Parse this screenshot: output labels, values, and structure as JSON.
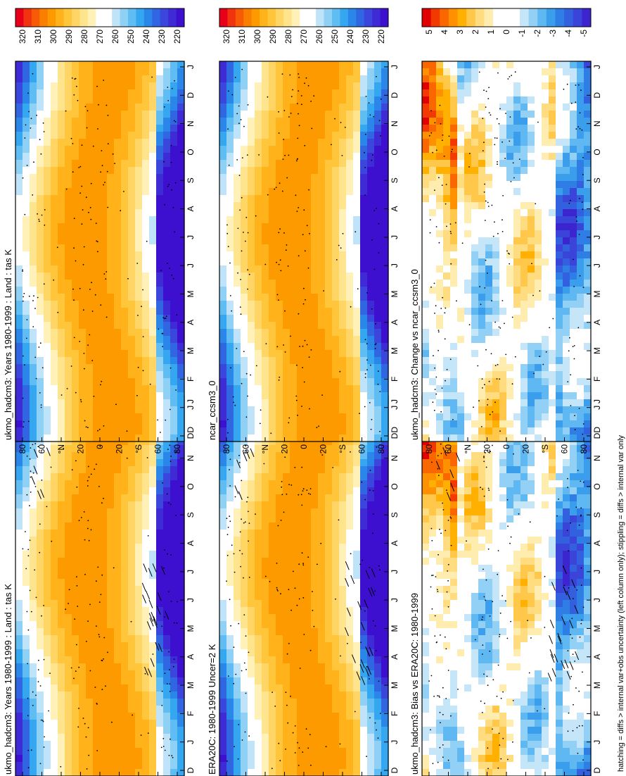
{
  "figure": {
    "footnote": "hatching = diffs > internal var+obs uncertainty (left column only); stippling = diffs > internal var only"
  },
  "chart_data": [
    {
      "id": "p1",
      "type": "heatmap",
      "field": "abs",
      "title": "ukmo_hadcm3: Years 1980-1999 : Land : tas K",
      "x_ticks": [
        "D",
        "J",
        "F",
        "M",
        "A",
        "M",
        "J",
        "J",
        "A",
        "S",
        "O",
        "N",
        "D",
        "J"
      ],
      "y_ticks": [
        "80",
        "60",
        "°N",
        "20",
        "0",
        "20",
        "°S",
        "60",
        "80"
      ],
      "colorbar": {
        "labels": [
          "320",
          "310",
          "300",
          "290",
          "280",
          "270",
          "260",
          "250",
          "240",
          "230",
          "220"
        ]
      },
      "overlay": "stipple+hatch",
      "seed": 3
    },
    {
      "id": "p2",
      "type": "heatmap",
      "field": "abs",
      "title": "ukmo_hadcm3: Years 1980-1999 : Land : tas K",
      "x_ticks": [
        "D",
        "J",
        "F",
        "M",
        "A",
        "M",
        "J",
        "J",
        "A",
        "S",
        "O",
        "N",
        "D",
        "J"
      ],
      "y_ticks": [
        "80",
        "60",
        "°N",
        "20",
        "0",
        "20",
        "°S",
        "60",
        "80"
      ],
      "colorbar": {
        "labels": [
          "320",
          "310",
          "300",
          "290",
          "280",
          "270",
          "260",
          "250",
          "240",
          "230",
          "220"
        ]
      },
      "overlay": "stipple",
      "seed": 5
    },
    {
      "id": "p3",
      "type": "heatmap",
      "field": "abs",
      "title": "ERA20C: 1980-1999 Uncer=2 K",
      "x_ticks": [
        "D",
        "J",
        "F",
        "M",
        "A",
        "M",
        "J",
        "J",
        "A",
        "S",
        "O",
        "N",
        "D",
        "J"
      ],
      "y_ticks": [
        "80",
        "60",
        "°N",
        "20",
        "0",
        "20",
        "°S",
        "60",
        "80"
      ],
      "colorbar": {
        "labels": [
          "320",
          "310",
          "300",
          "290",
          "280",
          "270",
          "260",
          "250",
          "240",
          "230",
          "220"
        ]
      },
      "overlay": "stipple+hatch",
      "seed": 7
    },
    {
      "id": "p4",
      "type": "heatmap",
      "field": "abs",
      "title": "ncar_ccsm3_0",
      "x_ticks": [
        "D",
        "J",
        "F",
        "M",
        "A",
        "M",
        "J",
        "J",
        "A",
        "S",
        "O",
        "N",
        "D",
        "J"
      ],
      "y_ticks": [
        "80",
        "60",
        "°N",
        "20",
        "0",
        "20",
        "°S",
        "60",
        "80"
      ],
      "colorbar": {
        "labels": [
          "320",
          "310",
          "300",
          "290",
          "280",
          "270",
          "260",
          "250",
          "240",
          "230",
          "220"
        ]
      },
      "overlay": "stipple",
      "seed": 9
    },
    {
      "id": "p5",
      "type": "heatmap",
      "field": "diff",
      "title": "ukmo_hadcm3: Bias vs ERA20C: 1980-1999",
      "x_ticks": [
        "D",
        "J",
        "F",
        "M",
        "A",
        "M",
        "J",
        "J",
        "A",
        "S",
        "O",
        "N",
        "D",
        "J"
      ],
      "y_ticks": [
        "80",
        "60",
        "°N",
        "20",
        "0",
        "20",
        "°S",
        "60",
        "80"
      ],
      "colorbar": {
        "labels": [
          "5",
          "4",
          "3",
          "2",
          "1",
          "0",
          "-1",
          "-2",
          "-3",
          "-4",
          "-5"
        ]
      },
      "overlay": "stipple+hatch",
      "seed": 11
    },
    {
      "id": "p6",
      "type": "heatmap",
      "field": "diff",
      "title": "ukmo_hadcm3: Change vs ncar_ccsm3_0",
      "x_ticks": [
        "D",
        "J",
        "F",
        "M",
        "A",
        "M",
        "J",
        "J",
        "A",
        "S",
        "O",
        "N",
        "D",
        "J"
      ],
      "y_ticks": [
        "80",
        "60",
        "°N",
        "20",
        "0",
        "20",
        "°S",
        "60",
        "80"
      ],
      "colorbar": {
        "labels": [
          "5",
          "4",
          "3",
          "2",
          "1",
          "0",
          "-1",
          "-2",
          "-3",
          "-4",
          "-5"
        ]
      },
      "overlay": "stipple",
      "seed": 13
    }
  ],
  "colors": {
    "abs": [
      "#e8001a",
      "#f2330f",
      "#f75b05",
      "#fa7f00",
      "#fd9a00",
      "#ffb21a",
      "#ffc63c",
      "#ffd666",
      "#ffe48e",
      "#fff1b8",
      "#ffffff",
      "#ffffff",
      "#bfe3f8",
      "#8fd0f5",
      "#5fbdf3",
      "#35a6f0",
      "#2b86e9",
      "#3066e2",
      "#3a46dc",
      "#3f2bd6",
      "#3d10cf"
    ],
    "diff": [
      "#e00000",
      "#f23a00",
      "#fa6600",
      "#ff9000",
      "#ffb000",
      "#ffc84a",
      "#ffdc80",
      "#ffedb0",
      "#ffffff",
      "#ffffff",
      "#ffffff",
      "#c4e6f8",
      "#93d0f5",
      "#5fb8f1",
      "#3a9eec",
      "#2e7ee6",
      "#3360df",
      "#3a44d8",
      "#3c25cf"
    ]
  }
}
